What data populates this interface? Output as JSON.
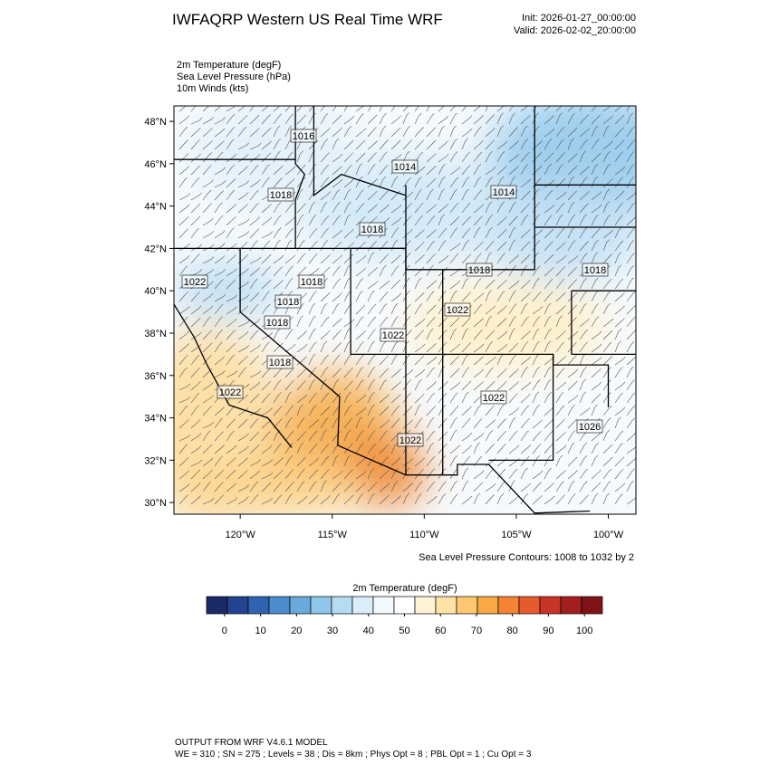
{
  "header": {
    "title": "IWFAQRP Western US Real Time WRF",
    "init": "Init: 2026-01-27_00:00:00",
    "valid": "Valid: 2026-02-02_20:00:00"
  },
  "fields": [
    "2m Temperature   (degF)",
    "Sea Level Pressure   (hPa)",
    "10m Winds   (kts)"
  ],
  "map": {
    "lonlim": [
      -123.6,
      -98.5
    ],
    "latlim": [
      29.45,
      48.73
    ],
    "latticks": [
      {
        "value": 30,
        "label": "30°N"
      },
      {
        "value": 32,
        "label": "32°N"
      },
      {
        "value": 34,
        "label": "34°N"
      },
      {
        "value": 36,
        "label": "36°N"
      },
      {
        "value": 38,
        "label": "38°N"
      },
      {
        "value": 40,
        "label": "40°N"
      },
      {
        "value": 42,
        "label": "42°N"
      },
      {
        "value": 44,
        "label": "44°N"
      },
      {
        "value": 46,
        "label": "46°N"
      },
      {
        "value": 48,
        "label": "48°N"
      }
    ],
    "lonticks": [
      {
        "value": -120,
        "label": "120°W"
      },
      {
        "value": -115,
        "label": "115°W"
      },
      {
        "value": -110,
        "label": "110°W"
      },
      {
        "value": -105,
        "label": "105°W"
      },
      {
        "value": -100,
        "label": "100°W"
      }
    ],
    "contour_labels": [
      "1016",
      "1014",
      "1014",
      "1018",
      "1018",
      "1018",
      "1018",
      "1022",
      "1018",
      "1018",
      "1022",
      "1018",
      "1022",
      "1018",
      "1022",
      "1022",
      "1022",
      "1026"
    ],
    "contour_note": "Sea Level Pressure Contours: 1008 to 1032 by 2"
  },
  "colorbar": {
    "title": "2m Temperature  (degF)",
    "clim": [
      -5,
      105
    ],
    "colors": [
      "#1b2a66",
      "#22438f",
      "#2f63b0",
      "#4a8ccc",
      "#6aa9dc",
      "#8fc6ea",
      "#b5dcf3",
      "#daeefa",
      "#f3f9fd",
      "#ffffff",
      "#fff3d6",
      "#ffe3a6",
      "#fdc870",
      "#f9a846",
      "#f48433",
      "#e65b2c",
      "#c83427",
      "#a31f1f",
      "#7f1416"
    ],
    "ticks": [
      0,
      10,
      20,
      30,
      40,
      50,
      60,
      70,
      80,
      90,
      100
    ]
  },
  "footer": {
    "line1": "OUTPUT FROM WRF V4.6.1 MODEL",
    "line2": "WE = 310 ; SN = 275 ; Levels = 38 ; Dis = 8km ; Phys Opt = 8 ; PBL Opt = 1 ; Cu Opt = 3"
  }
}
